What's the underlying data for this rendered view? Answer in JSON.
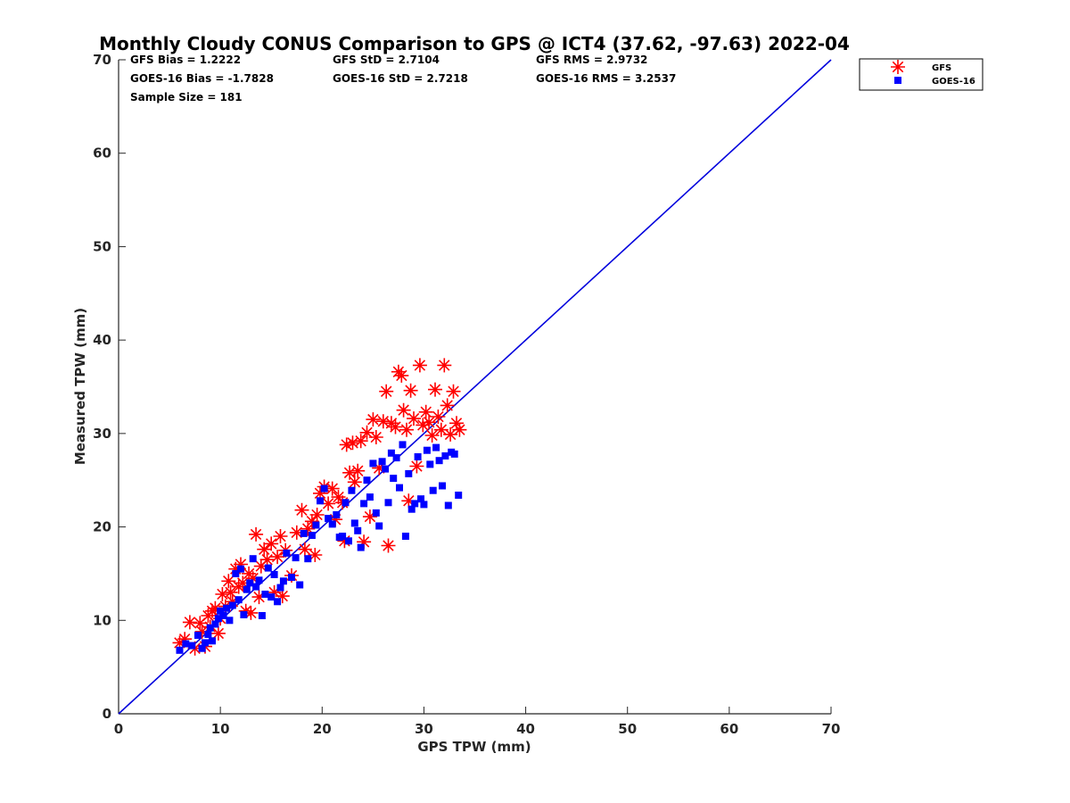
{
  "chart_data": {
    "type": "scatter",
    "title": "Monthly Cloudy CONUS Comparison to GPS @ ICT4 (37.62, -97.63) 2022-04",
    "xlabel": "GPS TPW (mm)",
    "ylabel": "Measured TPW (mm)",
    "xlim": [
      0,
      70
    ],
    "ylim": [
      0,
      70
    ],
    "xticks": [
      0,
      10,
      20,
      30,
      40,
      50,
      60,
      70
    ],
    "yticks": [
      0,
      10,
      20,
      30,
      40,
      50,
      60,
      70
    ],
    "grid": false,
    "legend_position": "top-right",
    "stats": [
      "GFS Bias = 1.2222",
      "GFS StD = 2.7104",
      "GFS RMS = 2.9732",
      "GOES-16 Bias = -1.7828",
      "GOES-16 StD = 2.7218",
      "GOES-16 RMS = 3.2537",
      "Sample Size = 181"
    ],
    "reference_line": {
      "x": [
        0,
        70
      ],
      "y": [
        0,
        70
      ],
      "color": "#0000dd"
    },
    "series": [
      {
        "name": "GFS",
        "marker": "asterisk",
        "color": "#ff0000",
        "points": [
          [
            6,
            7.6
          ],
          [
            6.5,
            8
          ],
          [
            7,
            9.8
          ],
          [
            7.5,
            7
          ],
          [
            8,
            9.7
          ],
          [
            8.2,
            8.8
          ],
          [
            8.5,
            7.2
          ],
          [
            8.8,
            10.5
          ],
          [
            9,
            9.3
          ],
          [
            9.2,
            11
          ],
          [
            9.5,
            11.3
          ],
          [
            9.8,
            8.6
          ],
          [
            10,
            10.2
          ],
          [
            10.2,
            12.8
          ],
          [
            10.5,
            11.5
          ],
          [
            10.8,
            14.2
          ],
          [
            11,
            13
          ],
          [
            11.2,
            12
          ],
          [
            11.5,
            15.5
          ],
          [
            11.8,
            13.6
          ],
          [
            12,
            16
          ],
          [
            12.2,
            14
          ],
          [
            12.5,
            11
          ],
          [
            12.8,
            15
          ],
          [
            13,
            10.8
          ],
          [
            13.2,
            14.5
          ],
          [
            13.5,
            19.2
          ],
          [
            13.8,
            12.5
          ],
          [
            14,
            15.8
          ],
          [
            14.3,
            17.6
          ],
          [
            14.6,
            16.5
          ],
          [
            15,
            18.2
          ],
          [
            15.3,
            13
          ],
          [
            15.6,
            16.8
          ],
          [
            15.9,
            19
          ],
          [
            16.1,
            12.6
          ],
          [
            16.4,
            17.5
          ],
          [
            17,
            14.8
          ],
          [
            17.5,
            19.4
          ],
          [
            18,
            21.8
          ],
          [
            18.3,
            17.6
          ],
          [
            18.6,
            19.8
          ],
          [
            19,
            20.6
          ],
          [
            19.3,
            17
          ],
          [
            19.5,
            21.3
          ],
          [
            19.8,
            23.6
          ],
          [
            20.2,
            24.3
          ],
          [
            20.6,
            22.5
          ],
          [
            21,
            24.1
          ],
          [
            21.3,
            20.8
          ],
          [
            21.6,
            23.2
          ],
          [
            22,
            22.6
          ],
          [
            22.2,
            18.5
          ],
          [
            22.4,
            28.8
          ],
          [
            22.7,
            25.8
          ],
          [
            23,
            29
          ],
          [
            23.2,
            24.8
          ],
          [
            23.5,
            26
          ],
          [
            23.8,
            29.2
          ],
          [
            24.1,
            18.4
          ],
          [
            24.4,
            30.1
          ],
          [
            24.7,
            21.1
          ],
          [
            25,
            31.5
          ],
          [
            25.3,
            29.6
          ],
          [
            25.6,
            26.3
          ],
          [
            26,
            31.3
          ],
          [
            26.3,
            34.5
          ],
          [
            26.5,
            18
          ],
          [
            26.8,
            31.1
          ],
          [
            27.2,
            30.7
          ],
          [
            27.5,
            36.6
          ],
          [
            27.8,
            36.2
          ],
          [
            28,
            32.5
          ],
          [
            28.3,
            30.4
          ],
          [
            28.5,
            22.8
          ],
          [
            28.7,
            34.6
          ],
          [
            29,
            31.6
          ],
          [
            29.3,
            26.5
          ],
          [
            29.6,
            37.3
          ],
          [
            29.9,
            30.9
          ],
          [
            30.2,
            32.3
          ],
          [
            30.5,
            31.2
          ],
          [
            30.8,
            29.8
          ],
          [
            31.1,
            34.7
          ],
          [
            31.4,
            31.8
          ],
          [
            31.7,
            30.4
          ],
          [
            32,
            37.3
          ],
          [
            32.3,
            33
          ],
          [
            32.6,
            29.9
          ],
          [
            32.9,
            34.5
          ],
          [
            33.2,
            31.1
          ],
          [
            33.5,
            30.4
          ]
        ]
      },
      {
        "name": "GOES-16",
        "marker": "square",
        "color": "#0000ff",
        "points": [
          [
            6,
            6.8
          ],
          [
            6.6,
            7.5
          ],
          [
            7.2,
            7.3
          ],
          [
            7.8,
            8.4
          ],
          [
            8.2,
            7
          ],
          [
            8.5,
            7.6
          ],
          [
            8.8,
            8.5
          ],
          [
            9,
            9.2
          ],
          [
            9.2,
            7.8
          ],
          [
            9.5,
            9.6
          ],
          [
            9.8,
            10.2
          ],
          [
            10,
            11
          ],
          [
            10.3,
            10.5
          ],
          [
            10.6,
            11.3
          ],
          [
            10.9,
            10
          ],
          [
            11.2,
            11.6
          ],
          [
            11.5,
            15
          ],
          [
            11.8,
            12.2
          ],
          [
            12,
            15.5
          ],
          [
            12.3,
            10.6
          ],
          [
            12.6,
            13.3
          ],
          [
            12.9,
            14
          ],
          [
            13.2,
            16.6
          ],
          [
            13.5,
            13.6
          ],
          [
            13.8,
            14.3
          ],
          [
            14.1,
            10.5
          ],
          [
            14.4,
            12.8
          ],
          [
            14.7,
            15.6
          ],
          [
            15,
            12.5
          ],
          [
            15.3,
            14.9
          ],
          [
            15.6,
            12
          ],
          [
            15.9,
            13.5
          ],
          [
            16.2,
            14.2
          ],
          [
            16.5,
            17.2
          ],
          [
            17,
            14.6
          ],
          [
            17.4,
            16.7
          ],
          [
            17.8,
            13.8
          ],
          [
            18.2,
            19.3
          ],
          [
            18.6,
            16.6
          ],
          [
            19,
            19.1
          ],
          [
            19.4,
            20.2
          ],
          [
            19.8,
            22.8
          ],
          [
            20.2,
            24.1
          ],
          [
            20.6,
            20.9
          ],
          [
            21,
            20.3
          ],
          [
            21.4,
            21.3
          ],
          [
            21.7,
            18.9
          ],
          [
            22,
            19
          ],
          [
            22.3,
            22.6
          ],
          [
            22.6,
            18.5
          ],
          [
            22.9,
            23.9
          ],
          [
            23.2,
            20.4
          ],
          [
            23.5,
            19.6
          ],
          [
            23.8,
            17.8
          ],
          [
            24.1,
            22.5
          ],
          [
            24.4,
            25
          ],
          [
            24.7,
            23.2
          ],
          [
            25,
            26.8
          ],
          [
            25.3,
            21.5
          ],
          [
            25.6,
            20.1
          ],
          [
            25.9,
            27
          ],
          [
            26.2,
            26.2
          ],
          [
            26.5,
            22.6
          ],
          [
            26.8,
            27.9
          ],
          [
            27,
            25.2
          ],
          [
            27.3,
            27.4
          ],
          [
            27.6,
            24.2
          ],
          [
            27.9,
            28.8
          ],
          [
            28.2,
            19
          ],
          [
            28.5,
            25.7
          ],
          [
            28.8,
            21.9
          ],
          [
            29.1,
            22.5
          ],
          [
            29.4,
            27.5
          ],
          [
            29.7,
            23
          ],
          [
            30,
            22.4
          ],
          [
            30.3,
            28.2
          ],
          [
            30.6,
            26.7
          ],
          [
            30.9,
            23.9
          ],
          [
            31.2,
            28.5
          ],
          [
            31.5,
            27.1
          ],
          [
            31.8,
            24.4
          ],
          [
            32.1,
            27.6
          ],
          [
            32.4,
            22.3
          ],
          [
            32.7,
            28
          ],
          [
            33,
            27.8
          ],
          [
            33.4,
            23.4
          ]
        ]
      }
    ]
  }
}
